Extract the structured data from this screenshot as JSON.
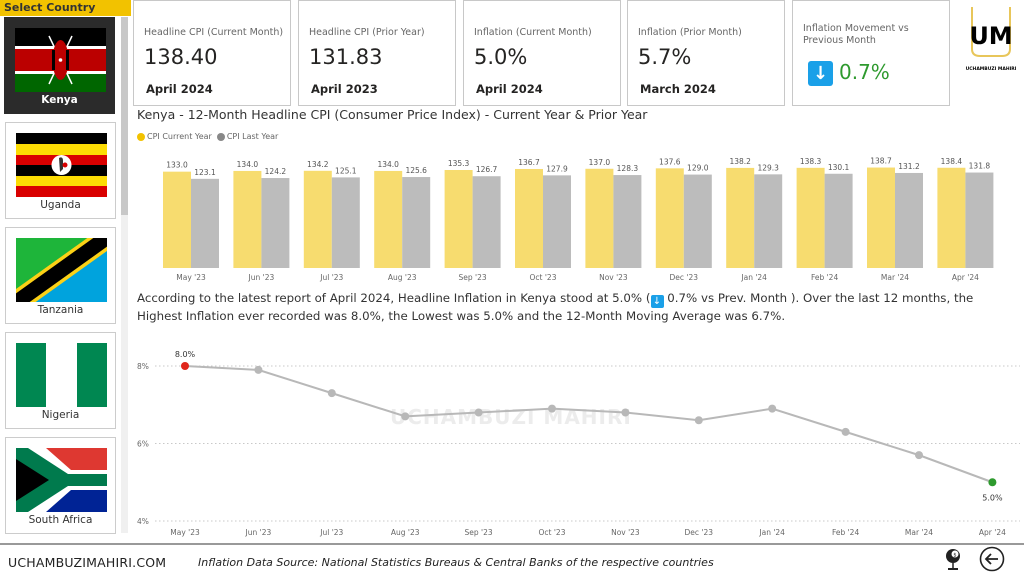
{
  "sidebar": {
    "header": "Select Country",
    "countries": [
      {
        "label": "Kenya",
        "selected": true
      },
      {
        "label": "Uganda",
        "selected": false
      },
      {
        "label": "Tanzania",
        "selected": false
      },
      {
        "label": "Nigeria",
        "selected": false
      },
      {
        "label": "South Africa",
        "selected": false
      }
    ]
  },
  "kpis": [
    {
      "title": "Headline CPI (Current Month)",
      "value": "138.40",
      "date": "April 2024"
    },
    {
      "title": "Headline CPI (Prior Year)",
      "value": "131.83",
      "date": "April 2023"
    },
    {
      "title": "Inflation (Current Month)",
      "value": "5.0%",
      "date": "April 2024"
    },
    {
      "title": "Inflation (Prior Month)",
      "value": "5.7%",
      "date": "March 2024"
    },
    {
      "title": "Inflation Movement vs Previous Month",
      "value": "0.7%",
      "icon": "arrow-down-icon",
      "value_color": "#2e9a2e",
      "icon_color": "#1aa0e8"
    }
  ],
  "logo": {
    "text": "UM",
    "subtext": "UCHAMBUZI MAHIRI"
  },
  "watermark": "UCHAMBUZI MAHIRI",
  "narrative": {
    "part1": "According to the latest report of April 2024, Headline Inflation in Kenya stood at 5.0% (",
    "part2": " 0.7% vs Prev. Month ). Over the last 12 months, the Highest Inflation ever recorded was 8.0%, the Lowest was 5.0% and the 12-Month Moving Average was 6.7%."
  },
  "chart_data": [
    {
      "type": "bar",
      "title": "Kenya - 12-Month Headline CPI (Consumer Price Index) - Current Year & Prior Year",
      "categories": [
        "May '23",
        "Jun '23",
        "Jul '23",
        "Aug '23",
        "Sep '23",
        "Oct '23",
        "Nov '23",
        "Dec '23",
        "Jan '24",
        "Feb '24",
        "Mar '24",
        "Apr '24"
      ],
      "series": [
        {
          "name": "CPI Current Year",
          "color": "#f7dc6f",
          "values": [
            133.0,
            134.0,
            134.2,
            134.0,
            135.3,
            136.7,
            137.0,
            137.6,
            138.2,
            138.3,
            138.7,
            138.4
          ]
        },
        {
          "name": "CPI Last Year",
          "color": "#bcbcbc",
          "values": [
            123.1,
            124.2,
            125.1,
            125.6,
            126.7,
            127.9,
            128.3,
            129.0,
            129.3,
            130.1,
            131.2,
            131.8
          ]
        }
      ],
      "legend": "top-left",
      "ylim": [
        0,
        185
      ]
    },
    {
      "type": "line",
      "categories": [
        "May '23",
        "Jun '23",
        "Jul '23",
        "Aug '23",
        "Sep '23",
        "Oct '23",
        "Nov '23",
        "Dec '23",
        "Jan '24",
        "Feb '24",
        "Mar '24",
        "Apr '24"
      ],
      "values": [
        8.0,
        7.9,
        7.3,
        6.7,
        6.8,
        6.9,
        6.8,
        6.6,
        6.9,
        6.3,
        5.7,
        5.0
      ],
      "yticks": [
        "4%",
        "6%",
        "8%"
      ],
      "ylim": [
        4,
        8
      ],
      "grid": true,
      "annotations": [
        {
          "label": "8.0%",
          "index": 0,
          "color": "#e0261b"
        },
        {
          "label": "5.0%",
          "index": 11,
          "color": "#2e9a2e"
        }
      ],
      "line_color": "#b8b8b8"
    }
  ],
  "footer": {
    "site": "UCHAMBUZIMAHIRI.COM",
    "source": "Inflation Data Source: National Statistics Bureaus & Central Banks of the respective countries",
    "icons": [
      "globe-icon",
      "back-arrow-icon"
    ]
  }
}
